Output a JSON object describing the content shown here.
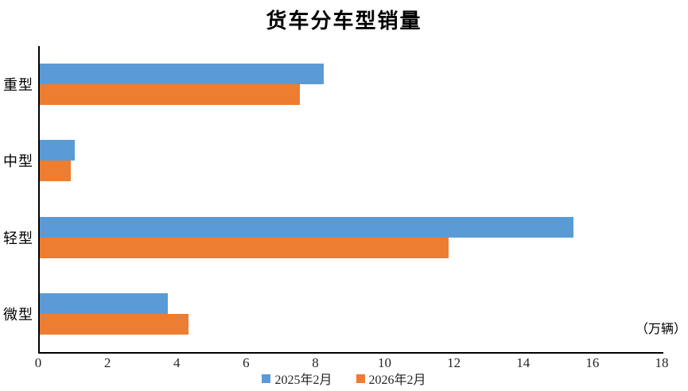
{
  "chart_data": {
    "type": "bar",
    "orientation": "horizontal",
    "title": "货车分车型销量",
    "categories": [
      "重型",
      "中型",
      "轻型",
      "微型"
    ],
    "series": [
      {
        "name": "2025年2月",
        "color": "#5B9BD5",
        "values": [
          8.2,
          1.0,
          15.4,
          3.7
        ]
      },
      {
        "name": "2026年2月",
        "color": "#ED7D31",
        "values": [
          7.5,
          0.9,
          11.8,
          4.3
        ]
      }
    ],
    "xlabel": "（万辆）",
    "ylabel": "",
    "xlim": [
      0,
      18
    ],
    "xticks": [
      0,
      2,
      4,
      6,
      8,
      10,
      12,
      14,
      16,
      18
    ],
    "grid": false,
    "legend_position": "bottom",
    "axis_color": "#000000",
    "background": "#ffffff"
  }
}
